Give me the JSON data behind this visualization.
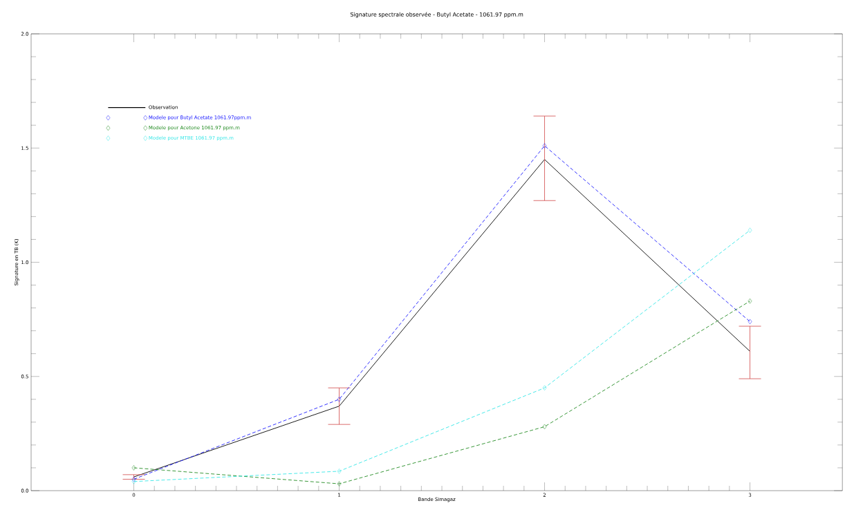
{
  "chart_data": {
    "type": "line",
    "title": "Signature spectrale observée - Butyl Acetate - 1061.97 ppm.m",
    "xlabel": "Bande Simagaz",
    "ylabel": "Signature en TB (K)",
    "x": [
      0,
      1,
      2,
      3
    ],
    "xlim": [
      -0.5,
      3.45
    ],
    "xticks": [
      0,
      1,
      2,
      3
    ],
    "ylim": [
      0,
      2
    ],
    "yticks": [
      {
        "value": 0,
        "label": "0.0"
      },
      {
        "value": 0.5,
        "label": "0.5"
      },
      {
        "value": 1,
        "label": "1.0"
      },
      {
        "value": 1.5,
        "label": "1.5"
      },
      {
        "value": 2,
        "label": "2.0"
      }
    ],
    "grid": false,
    "legend": "top left",
    "series": [
      {
        "name": "Observation",
        "color": "#000000",
        "values": [
          0.06,
          0.37,
          1.45,
          0.61
        ],
        "errors": [
          [
            0.05,
            0.07
          ],
          [
            0.29,
            0.45
          ],
          [
            1.27,
            1.64
          ],
          [
            0.49,
            0.72
          ]
        ],
        "marker": "none",
        "line_style": "solid"
      },
      {
        "name": "Modele pour Butyl Acetate 1061.97ppm.m",
        "color": "#1a1aff",
        "values": [
          0.05,
          0.4,
          1.51,
          0.74
        ],
        "marker": "diamond",
        "line_style": "dashed"
      },
      {
        "name": "Modele pour Acetone 1061.97 ppm.m",
        "color": "#228b22",
        "values": [
          0.1,
          0.03,
          0.28,
          0.83
        ],
        "marker": "diamond",
        "line_style": "dashed"
      },
      {
        "name": "Modele pour MTBE 1061.97 ppm.m",
        "color": "#33e6e6",
        "values": [
          0.04,
          0.085,
          0.45,
          1.14
        ],
        "marker": "diamond",
        "line_style": "dashed"
      }
    ]
  }
}
